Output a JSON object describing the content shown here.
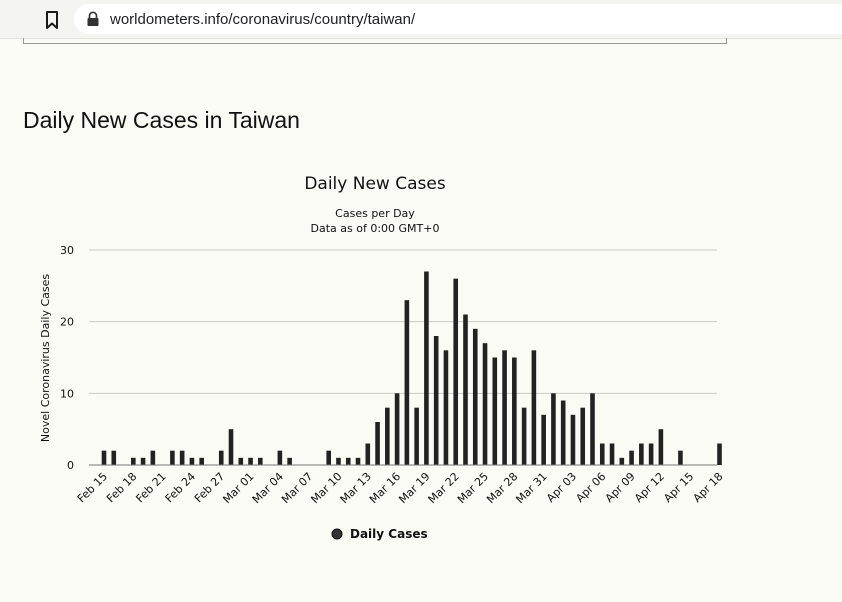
{
  "browser": {
    "url": "worldometers.info/coronavirus/country/taiwan/"
  },
  "page": {
    "title": "Daily New Cases in Taiwan"
  },
  "chart_data": {
    "type": "bar",
    "title": "Daily New Cases",
    "subtitle_line1": "Cases per Day",
    "subtitle_line2": "Data as of 0:00 GMT+0",
    "xlabel": "",
    "ylabel": "Novel Coronavirus Daily Cases",
    "ylim": [
      0,
      30
    ],
    "yticks": [
      "0",
      "10",
      "20",
      "30"
    ],
    "grid": true,
    "legend_position": "bottom-center",
    "bar_color": "#222222",
    "categories": [
      "Feb 15",
      "Feb 16",
      "Feb 17",
      "Feb 18",
      "Feb 19",
      "Feb 20",
      "Feb 21",
      "Feb 22",
      "Feb 23",
      "Feb 24",
      "Feb 25",
      "Feb 26",
      "Feb 27",
      "Feb 28",
      "Feb 29",
      "Mar 01",
      "Mar 02",
      "Mar 03",
      "Mar 04",
      "Mar 05",
      "Mar 06",
      "Mar 07",
      "Mar 08",
      "Mar 09",
      "Mar 10",
      "Mar 11",
      "Mar 12",
      "Mar 13",
      "Mar 14",
      "Mar 15",
      "Mar 16",
      "Mar 17",
      "Mar 18",
      "Mar 19",
      "Mar 20",
      "Mar 21",
      "Mar 22",
      "Mar 23",
      "Mar 24",
      "Mar 25",
      "Mar 26",
      "Mar 27",
      "Mar 28",
      "Mar 29",
      "Mar 30",
      "Mar 31",
      "Apr 01",
      "Apr 02",
      "Apr 03",
      "Apr 04",
      "Apr 05",
      "Apr 06",
      "Apr 07",
      "Apr 08",
      "Apr 09",
      "Apr 10",
      "Apr 11",
      "Apr 12",
      "Apr 13",
      "Apr 14",
      "Apr 15",
      "Apr 16",
      "Apr 17",
      "Apr 18"
    ],
    "tick_labels": [
      "Feb 15",
      "Feb 18",
      "Feb 21",
      "Feb 24",
      "Feb 27",
      "Mar 01",
      "Mar 04",
      "Mar 07",
      "Mar 10",
      "Mar 13",
      "Mar 16",
      "Mar 19",
      "Mar 22",
      "Mar 25",
      "Mar 28",
      "Mar 31",
      "Apr 03",
      "Apr 06",
      "Apr 09",
      "Apr 12",
      "Apr 15",
      "Apr 18"
    ],
    "series": [
      {
        "name": "Daily Cases",
        "values": [
          2,
          2,
          0,
          1,
          1,
          2,
          0,
          2,
          2,
          1,
          1,
          0,
          2,
          5,
          1,
          1,
          1,
          0,
          2,
          1,
          0,
          0,
          0,
          2,
          1,
          1,
          1,
          3,
          6,
          8,
          10,
          23,
          8,
          27,
          18,
          16,
          26,
          21,
          19,
          17,
          15,
          16,
          15,
          8,
          16,
          7,
          10,
          9,
          7,
          8,
          10,
          3,
          3,
          1,
          2,
          3,
          3,
          5,
          0,
          2,
          0,
          0,
          0,
          3
        ]
      }
    ]
  }
}
